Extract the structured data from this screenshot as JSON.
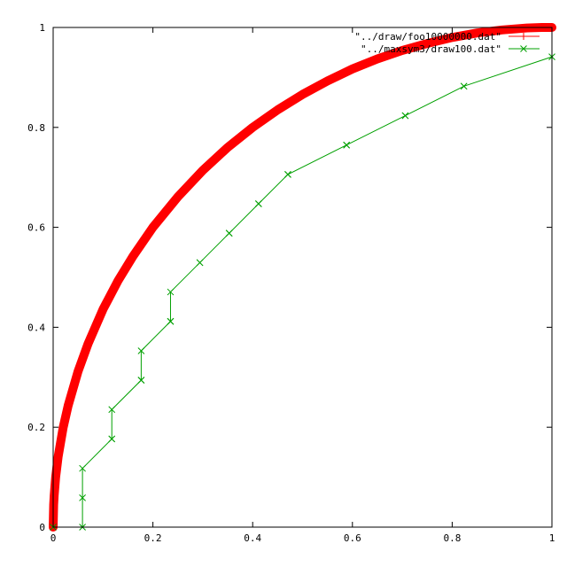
{
  "chart_data": {
    "type": "line",
    "title": "",
    "xlabel": "",
    "ylabel": "",
    "xlim": [
      0,
      1
    ],
    "ylim": [
      0,
      1
    ],
    "grid": false,
    "legend_position": "top-right",
    "x_ticks": [
      0,
      0.2,
      0.4,
      0.6,
      0.8,
      1
    ],
    "x_tick_labels": [
      "0",
      "0.2",
      "0.4",
      "0.6",
      "0.8",
      "1"
    ],
    "y_ticks": [
      0,
      0.2,
      0.4,
      0.6,
      0.8,
      1
    ],
    "y_tick_labels": [
      "0",
      "0.2",
      "0.4",
      "0.6",
      "0.8",
      "1"
    ],
    "series": [
      {
        "name": "\"../draw/foo10000000.dat\"",
        "color": "#ff0000",
        "marker": "plus",
        "style": "lines+points",
        "function": "y = sqrt(x*(2-x))",
        "x": [
          0,
          0.001,
          0.002,
          0.005,
          0.01,
          0.02,
          0.03,
          0.05,
          0.07,
          0.1,
          0.13,
          0.16,
          0.2,
          0.25,
          0.3,
          0.35,
          0.4,
          0.45,
          0.5,
          0.55,
          0.6,
          0.65,
          0.7,
          0.75,
          0.8,
          0.85,
          0.9,
          0.95,
          0.98,
          1
        ],
        "y": [
          0,
          0.045,
          0.063,
          0.1,
          0.141,
          0.199,
          0.243,
          0.312,
          0.367,
          0.436,
          0.493,
          0.542,
          0.6,
          0.661,
          0.714,
          0.76,
          0.8,
          0.835,
          0.866,
          0.893,
          0.917,
          0.937,
          0.954,
          0.968,
          0.98,
          0.989,
          0.995,
          0.999,
          1,
          1
        ]
      },
      {
        "name": "\"../maxsym3/draw100.dat\"",
        "color": "#00a000",
        "marker": "cross",
        "style": "steps",
        "x": [
          0,
          0.0588,
          0.0588,
          0.0588,
          0.1176,
          0.1176,
          0.1176,
          0.1765,
          0.1765,
          0.1765,
          0.2353,
          0.2353,
          0.2353,
          0.2941,
          0.2941,
          0.3529,
          0.3529,
          0.4118,
          0.4118,
          0.4706,
          0.4706,
          0.5882,
          0.5882,
          0.7059,
          0.7059,
          0.8235,
          0.8235,
          1
        ],
        "y": [
          0,
          0,
          0.0588,
          0.1176,
          0.1765,
          0.1765,
          0.2353,
          0.2941,
          0.2941,
          0.3529,
          0.4118,
          0.4118,
          0.4706,
          0.5294,
          0.5294,
          0.5882,
          0.5882,
          0.6471,
          0.6471,
          0.7059,
          0.7059,
          0.7647,
          0.7647,
          0.8235,
          0.8235,
          0.8824,
          0.8824,
          0.9412
        ]
      }
    ]
  }
}
